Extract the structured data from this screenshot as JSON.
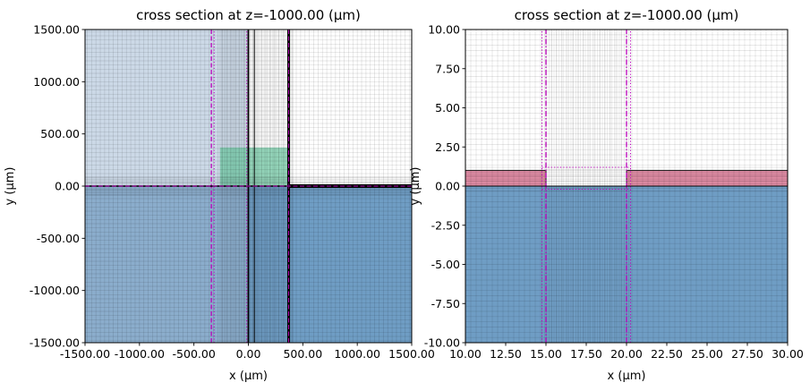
{
  "figure": {
    "background": "#ffffff",
    "accent_magenta": "#bb00bb",
    "structure_black": "#000000"
  },
  "chart_data": [
    {
      "id": "left-cross-section-plot",
      "type": "heatmap",
      "title": "cross section at z=-1000.00 (µm)",
      "xlabel": "x (µm)",
      "ylabel": "y (µm)",
      "xlim": [
        -1500,
        1500
      ],
      "ylim": [
        -1500,
        1500
      ],
      "xticks": [
        -1500,
        -1000,
        -500,
        0,
        500,
        1000,
        1500
      ],
      "xtick_labels": [
        "-1500.00",
        "-1000.00",
        "-500.00",
        "0.00",
        "500.00",
        "1000.00",
        "1500.00"
      ],
      "yticks": [
        -1500,
        -1000,
        -500,
        0,
        500,
        1000,
        1500
      ],
      "ytick_labels": [
        "-1500.00",
        "-1000.00",
        "-500.00",
        "0.00",
        "500.00",
        "1000.00",
        "1500.00"
      ],
      "grid": true,
      "legend": false,
      "regions": [
        {
          "name": "substrate-lower-half",
          "x": [
            -1500,
            1500
          ],
          "y": [
            -1500,
            0
          ],
          "fill": "rgba(70,130,180,0.78)"
        },
        {
          "name": "cladding-left-half",
          "x": [
            -1500,
            0
          ],
          "y": [
            -1500,
            1500
          ],
          "fill": "rgba(163,185,211,0.55)"
        },
        {
          "name": "center-material-box",
          "x": [
            -260,
            370
          ],
          "y": [
            0,
            370
          ],
          "fill": "rgba(110,205,165,0.70)"
        }
      ],
      "mesh": {
        "color": "rgba(0,0,0,0.13)",
        "x_bands": [
          {
            "from": -1480,
            "to": 1480,
            "step": 40
          },
          {
            "from": -260,
            "to": 420,
            "step": 12
          }
        ],
        "y_bands": [
          {
            "from": -1480,
            "to": 1480,
            "step": 40
          },
          {
            "from": -90,
            "to": 90,
            "step": 12
          }
        ]
      },
      "lines": [
        {
          "name": "monitor-vertical-dashed",
          "x": [
            -340,
            -340
          ],
          "y": [
            -1500,
            1500
          ],
          "stroke": "#bb00bb",
          "width": 1.3,
          "dash": "5 2.5"
        },
        {
          "name": "monitor-vertical-dotted",
          "x": [
            -315,
            -315
          ],
          "y": [
            -1500,
            1500
          ],
          "stroke": "#bb00bb",
          "width": 1,
          "dash": "1.2 2.2"
        },
        {
          "name": "monitor-vertical-dotted-2",
          "x": [
            -15,
            -15
          ],
          "y": [
            -1500,
            1500
          ],
          "stroke": "#bb00bb",
          "width": 1,
          "dash": "1.2 2.2"
        },
        {
          "name": "structure-vertical-left-edge",
          "x": [
            0,
            0
          ],
          "y": [
            -1500,
            1500
          ],
          "stroke": "#000000",
          "width": 1.8
        },
        {
          "name": "structure-vertical-inner",
          "x": [
            55,
            55
          ],
          "y": [
            -1500,
            1500
          ],
          "stroke": "#000000",
          "width": 1
        },
        {
          "name": "structure-vertical-right-edge",
          "x": [
            370,
            370
          ],
          "y": [
            -1500,
            1500
          ],
          "stroke": "#000000",
          "width": 3
        },
        {
          "name": "monitor-vertical-dashed-2",
          "x": [
            370,
            370
          ],
          "y": [
            -1500,
            1500
          ],
          "stroke": "#bb00bb",
          "width": 1,
          "dash": "5 2.5"
        },
        {
          "name": "interface-horizontal",
          "x": [
            -1500,
            1500
          ],
          "y": [
            0,
            0
          ],
          "stroke": "#000000",
          "width": 1.5
        },
        {
          "name": "slab-horizontal-thick",
          "x": [
            370,
            1500
          ],
          "y": [
            0,
            0
          ],
          "stroke": "#000000",
          "width": 4
        },
        {
          "name": "monitor-horizontal-dashed",
          "x": [
            -1500,
            1500
          ],
          "y": [
            0,
            0
          ],
          "stroke": "#bb00bb",
          "width": 1,
          "dash": "5 2.5"
        }
      ]
    },
    {
      "id": "right-cross-section-plot",
      "type": "heatmap",
      "title": "cross section at z=-1000.00 (µm)",
      "xlabel": "x (µm)",
      "ylabel": "y (µm)",
      "xlim": [
        10,
        30
      ],
      "ylim": [
        -10,
        10
      ],
      "xticks": [
        10,
        12.5,
        15,
        17.5,
        20,
        22.5,
        25,
        27.5,
        30
      ],
      "xtick_labels": [
        "10.00",
        "12.50",
        "15.00",
        "17.50",
        "20.00",
        "22.50",
        "25.00",
        "27.50",
        "30.00"
      ],
      "yticks": [
        -10,
        -7.5,
        -5,
        -2.5,
        0,
        2.5,
        5,
        7.5,
        10
      ],
      "ytick_labels": [
        "-10.00",
        "-7.50",
        "-5.00",
        "-2.50",
        "0.00",
        "2.50",
        "5.00",
        "7.50",
        "10.00"
      ],
      "grid": true,
      "legend": false,
      "regions": [
        {
          "name": "substrate-lower-half",
          "x": [
            10,
            30
          ],
          "y": [
            -10,
            0
          ],
          "fill": "rgba(70,130,180,0.78)"
        },
        {
          "name": "film-strip-left",
          "x": [
            10,
            15
          ],
          "y": [
            0,
            1
          ],
          "fill": "rgba(196,60,100,0.60)",
          "stroke": "#000000",
          "stroke_width": 0.8
        },
        {
          "name": "film-strip-right",
          "x": [
            20,
            30
          ],
          "y": [
            0,
            1
          ],
          "fill": "rgba(196,60,100,0.60)",
          "stroke": "#000000",
          "stroke_width": 0.8
        }
      ],
      "mesh": {
        "color": "rgba(0,0,0,0.12)",
        "x_bands": [
          {
            "from": 10.3333,
            "to": 29.8,
            "step": 0.3333
          },
          {
            "from": 14.75,
            "to": 20.25,
            "step": 0.15
          }
        ],
        "y_bands": [
          {
            "from": -9.6667,
            "to": 9.8,
            "step": 0.3333
          },
          {
            "from": -0.3,
            "to": 1.3,
            "step": 0.15
          }
        ]
      },
      "lines": [
        {
          "name": "gap-left-dashdot",
          "x": [
            15,
            15
          ],
          "y": [
            -10,
            10
          ],
          "stroke": "#bb00bb",
          "width": 1.3,
          "dash": "6 2 1.5 2"
        },
        {
          "name": "gap-right-dashdot",
          "x": [
            20,
            20
          ],
          "y": [
            -10,
            10
          ],
          "stroke": "#bb00bb",
          "width": 1.3,
          "dash": "6 2 1.5 2"
        },
        {
          "name": "override-left-dotted",
          "x": [
            14.75,
            14.75
          ],
          "y": [
            -10,
            10
          ],
          "stroke": "#bb00bb",
          "width": 1,
          "dash": "1.2 2.2"
        },
        {
          "name": "override-right-dotted",
          "x": [
            20.25,
            20.25
          ],
          "y": [
            -10,
            10
          ],
          "stroke": "#bb00bb",
          "width": 1,
          "dash": "1.2 2.2"
        },
        {
          "name": "override-top-dotted",
          "x": [
            14.75,
            20.25
          ],
          "y": [
            1.2,
            1.2
          ],
          "stroke": "#bb00bb",
          "width": 1,
          "dash": "1.2 2.2"
        },
        {
          "name": "override-bottom-dotted",
          "x": [
            14.75,
            20.25
          ],
          "y": [
            -0.2,
            -0.2
          ],
          "stroke": "#bb00bb",
          "width": 1,
          "dash": "1.2 2.2"
        },
        {
          "name": "interface-horizontal",
          "x": [
            10,
            30
          ],
          "y": [
            0,
            0
          ],
          "stroke": "#000000",
          "width": 1
        }
      ]
    }
  ]
}
